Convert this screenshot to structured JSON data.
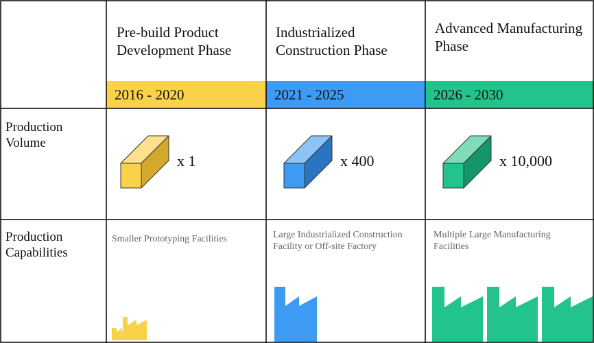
{
  "row_labels": [
    "Production Volume",
    "Production Capabilities"
  ],
  "phases": [
    {
      "title": "Pre-build Product Development Phase",
      "years": "2016 - 2020",
      "volume": "x 1",
      "capabilities": "Smaller Prototyping Facilities"
    },
    {
      "title": "Industrialized Construction Phase",
      "years": "2021 - 2025",
      "volume": "x 400",
      "capabilities": "Large Industrialized Construction Facility or Off-site Factory"
    },
    {
      "title": "Advanced Manufacturing Phase",
      "years": "2026 - 2030",
      "volume": "x 10,000",
      "capabilities": "Multiple Large Manufacturing Facilities"
    }
  ]
}
